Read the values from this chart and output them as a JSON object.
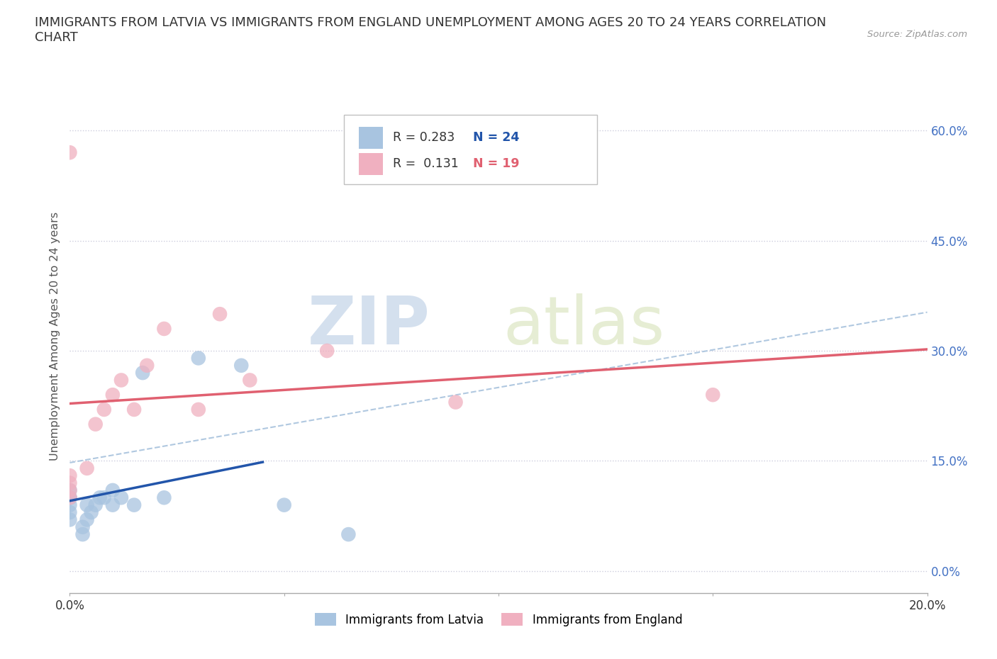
{
  "title": "IMMIGRANTS FROM LATVIA VS IMMIGRANTS FROM ENGLAND UNEMPLOYMENT AMONG AGES 20 TO 24 YEARS CORRELATION\nCHART",
  "source_text": "Source: ZipAtlas.com",
  "ylabel": "Unemployment Among Ages 20 to 24 years",
  "xlim": [
    0.0,
    0.2
  ],
  "ylim": [
    -0.03,
    0.67
  ],
  "ytick_vals": [
    0.0,
    0.15,
    0.3,
    0.45,
    0.6
  ],
  "ytick_labels": [
    "0.0%",
    "15.0%",
    "30.0%",
    "45.0%",
    "60.0%"
  ],
  "xtick_vals": [
    0.0,
    0.05,
    0.1,
    0.15,
    0.2
  ],
  "xtick_labels": [
    "0.0%",
    "",
    "",
    "",
    "20.0%"
  ],
  "latvia_color": "#a8c4e0",
  "england_color": "#f0b0c0",
  "latvia_line_color": "#2255aa",
  "england_line_color": "#e06070",
  "trendline_color": "#b0c8e0",
  "R_latvia": 0.283,
  "N_latvia": 24,
  "R_england": 0.131,
  "N_england": 19,
  "latvia_x": [
    0.0,
    0.0,
    0.0,
    0.0,
    0.0,
    0.0,
    0.003,
    0.003,
    0.004,
    0.004,
    0.005,
    0.006,
    0.007,
    0.008,
    0.01,
    0.01,
    0.012,
    0.015,
    0.017,
    0.022,
    0.03,
    0.04,
    0.05,
    0.065
  ],
  "latvia_y": [
    0.07,
    0.08,
    0.09,
    0.1,
    0.1,
    0.11,
    0.05,
    0.06,
    0.07,
    0.09,
    0.08,
    0.09,
    0.1,
    0.1,
    0.09,
    0.11,
    0.1,
    0.09,
    0.27,
    0.1,
    0.29,
    0.28,
    0.09,
    0.05
  ],
  "england_x": [
    0.0,
    0.0,
    0.0,
    0.0,
    0.0,
    0.004,
    0.006,
    0.008,
    0.01,
    0.012,
    0.015,
    0.018,
    0.022,
    0.03,
    0.035,
    0.042,
    0.06,
    0.09,
    0.15
  ],
  "england_y": [
    0.1,
    0.11,
    0.12,
    0.13,
    0.57,
    0.14,
    0.2,
    0.22,
    0.24,
    0.26,
    0.22,
    0.28,
    0.33,
    0.22,
    0.35,
    0.26,
    0.3,
    0.23,
    0.24
  ],
  "watermark_zip": "ZIP",
  "watermark_atlas": "atlas",
  "background_color": "#ffffff",
  "grid_color": "#ccccdd",
  "legend_r_color": "#333333",
  "legend_n_latvia_color": "#2255aa",
  "legend_n_england_color": "#e06070"
}
